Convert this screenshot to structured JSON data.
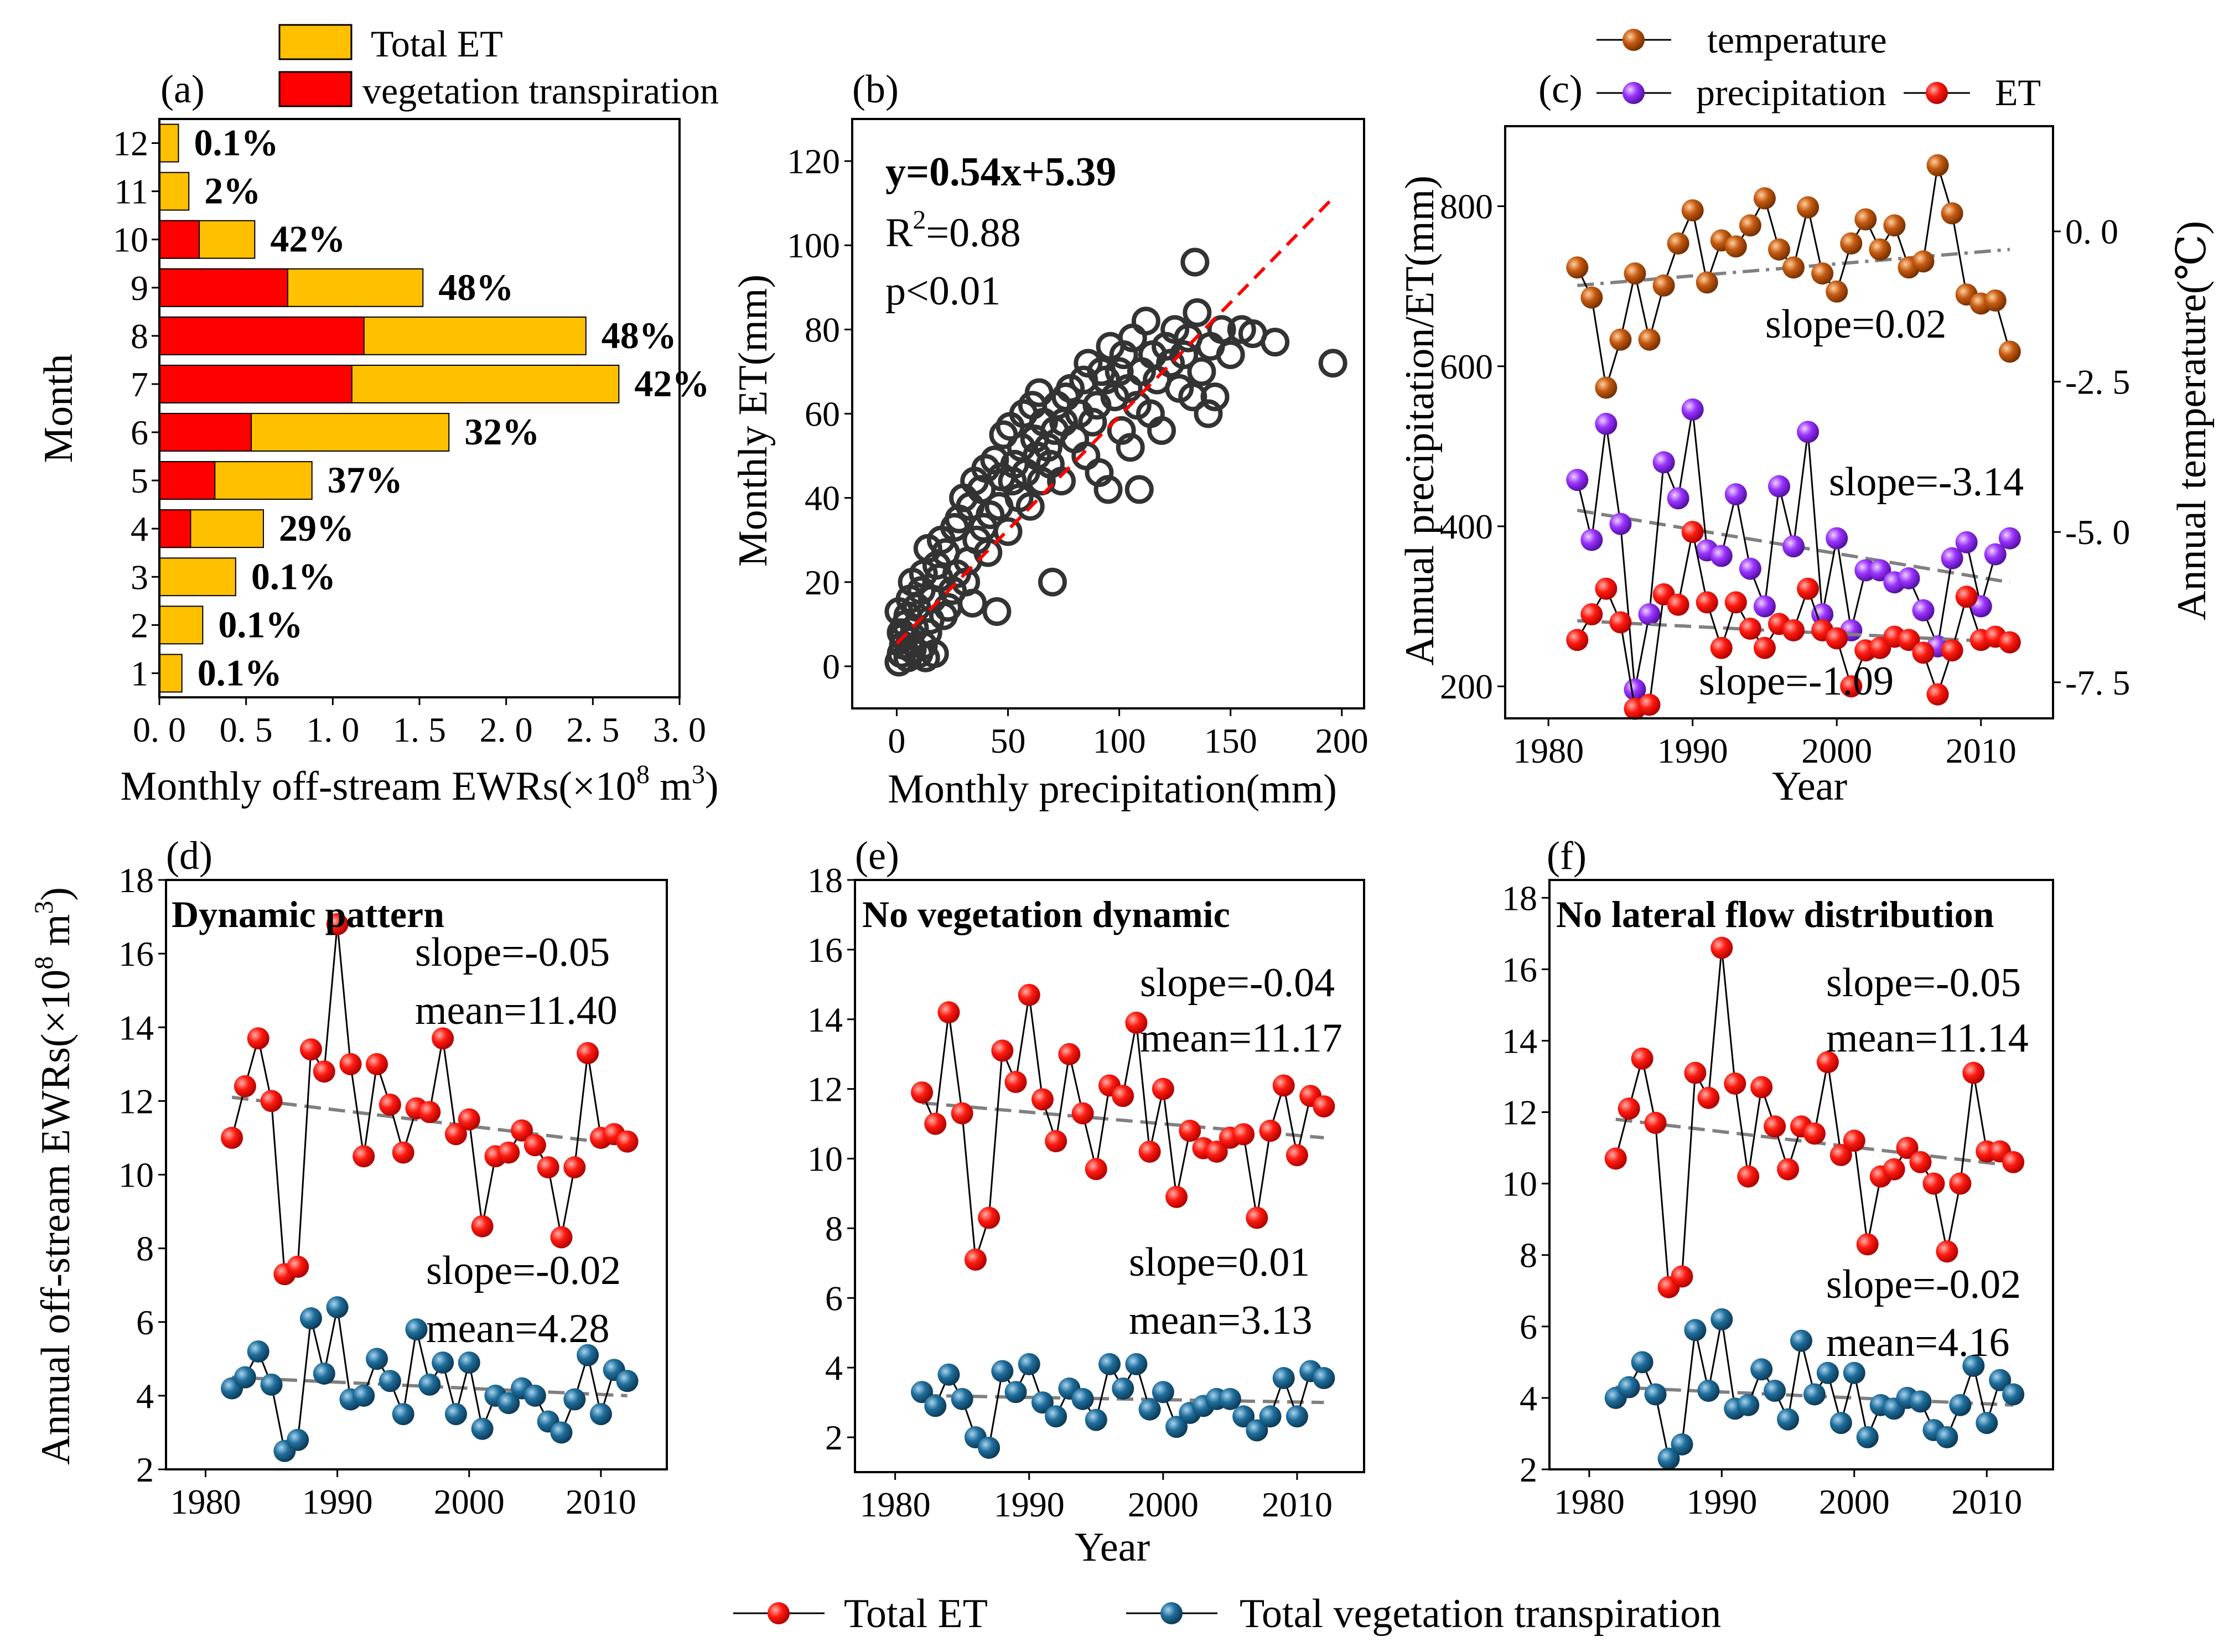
{
  "chart_data": [
    {
      "id": "a",
      "type": "bar",
      "panel_label": "(a)",
      "orientation": "horizontal",
      "categories": [
        "1",
        "2",
        "3",
        "4",
        "5",
        "6",
        "7",
        "8",
        "9",
        "10",
        "11",
        "12"
      ],
      "series": [
        {
          "name": "Total ET",
          "color": "#FFC000",
          "values": [
            0.13,
            0.25,
            0.44,
            0.6,
            0.88,
            1.67,
            2.65,
            2.46,
            1.52,
            0.55,
            0.17,
            0.11
          ]
        },
        {
          "name": "vegetation transpiration",
          "color": "#FF0000",
          "values": [
            0.0,
            0.0,
            0.0,
            0.18,
            0.32,
            0.53,
            1.11,
            1.18,
            0.74,
            0.23,
            0.0,
            0.0
          ]
        }
      ],
      "data_labels": [
        "0.1%",
        "0.1%",
        "0.1%",
        "29%",
        "37%",
        "32%",
        "42%",
        "48%",
        "48%",
        "42%",
        "2%",
        "0.1%"
      ],
      "xlabel_pre": "Monthly off-stream EWRs(×10",
      "xlabel_sup": "8",
      "xlabel_post": " m",
      "xlabel_sup2": "3",
      "xlabel_end": ")",
      "ylabel": "Month",
      "xlim": [
        0,
        3.0
      ],
      "xticks": [
        "0. 0",
        "0. 5",
        "1. 0",
        "1. 5",
        "2. 0",
        "2. 5",
        "3. 0"
      ],
      "legend": [
        "Total ET",
        "vegetation transpiration"
      ]
    },
    {
      "id": "b",
      "type": "scatter",
      "panel_label": "(b)",
      "xlabel": "Monthly precipitation(mm)",
      "ylabel": "Monthly ET(mm)",
      "xlim": [
        -20,
        210
      ],
      "ylim": [
        -10,
        130
      ],
      "xticks": [
        "0",
        "50",
        "100",
        "150",
        "200"
      ],
      "yticks": [
        "0",
        "20",
        "40",
        "60",
        "80",
        "100",
        "120"
      ],
      "equation": "y=0.54x+5.39",
      "r2_pre": "R",
      "r2_sup": "2",
      "r2_post": "=0.88",
      "pvalue": "p<0.01",
      "fit": {
        "slope": 0.54,
        "intercept": 5.39,
        "x_range": [
          0,
          195
        ]
      },
      "points": [
        [
          1,
          1
        ],
        [
          2,
          3
        ],
        [
          3,
          5
        ],
        [
          2,
          8
        ],
        [
          4,
          10
        ],
        [
          1,
          13
        ],
        [
          5,
          2
        ],
        [
          6,
          6
        ],
        [
          7,
          4
        ],
        [
          3,
          7
        ],
        [
          8,
          9
        ],
        [
          5,
          12
        ],
        [
          9,
          14
        ],
        [
          10,
          3
        ],
        [
          12,
          5
        ],
        [
          6,
          16
        ],
        [
          11,
          18
        ],
        [
          13,
          2
        ],
        [
          14,
          8
        ],
        [
          15,
          11
        ],
        [
          7,
          20
        ],
        [
          12,
          22
        ],
        [
          16,
          16
        ],
        [
          18,
          24
        ],
        [
          14,
          28
        ],
        [
          17,
          3
        ],
        [
          19,
          21
        ],
        [
          20,
          30
        ],
        [
          21,
          12
        ],
        [
          22,
          27
        ],
        [
          23,
          14
        ],
        [
          25,
          18
        ],
        [
          26,
          33
        ],
        [
          28,
          35
        ],
        [
          27,
          22
        ],
        [
          30,
          40
        ],
        [
          31,
          20
        ],
        [
          32,
          25
        ],
        [
          33,
          38
        ],
        [
          35,
          44
        ],
        [
          34,
          15
        ],
        [
          36,
          30
        ],
        [
          38,
          42
        ],
        [
          39,
          33
        ],
        [
          40,
          47
        ],
        [
          41,
          27
        ],
        [
          42,
          36
        ],
        [
          44,
          49
        ],
        [
          45,
          13
        ],
        [
          46,
          38
        ],
        [
          47,
          45
        ],
        [
          48,
          55
        ],
        [
          50,
          32
        ],
        [
          51,
          57
        ],
        [
          52,
          44
        ],
        [
          53,
          48
        ],
        [
          55,
          40
        ],
        [
          56,
          52
        ],
        [
          57,
          60
        ],
        [
          58,
          46
        ],
        [
          60,
          38
        ],
        [
          61,
          62
        ],
        [
          62,
          54
        ],
        [
          63,
          50
        ],
        [
          64,
          65
        ],
        [
          65,
          44
        ],
        [
          66,
          58
        ],
        [
          68,
          52
        ],
        [
          69,
          48
        ],
        [
          70,
          20
        ],
        [
          71,
          56
        ],
        [
          72,
          62
        ],
        [
          74,
          44
        ],
        [
          75,
          58
        ],
        [
          76,
          64
        ],
        [
          78,
          66
        ],
        [
          80,
          54
        ],
        [
          82,
          60
        ],
        [
          84,
          68
        ],
        [
          85,
          50
        ],
        [
          86,
          72
        ],
        [
          88,
          58
        ],
        [
          90,
          62
        ],
        [
          91,
          46
        ],
        [
          92,
          70
        ],
        [
          94,
          68
        ],
        [
          95,
          42
        ],
        [
          96,
          76
        ],
        [
          98,
          64
        ],
        [
          100,
          70
        ],
        [
          101,
          56
        ],
        [
          102,
          74
        ],
        [
          104,
          66
        ],
        [
          105,
          52
        ],
        [
          106,
          78
        ],
        [
          108,
          62
        ],
        [
          109,
          42
        ],
        [
          110,
          70
        ],
        [
          112,
          82
        ],
        [
          114,
          60
        ],
        [
          115,
          74
        ],
        [
          117,
          68
        ],
        [
          119,
          56
        ],
        [
          121,
          76
        ],
        [
          123,
          72
        ],
        [
          125,
          80
        ],
        [
          127,
          66
        ],
        [
          129,
          74
        ],
        [
          131,
          78
        ],
        [
          133,
          64
        ],
        [
          134,
          96
        ],
        [
          135,
          84
        ],
        [
          137,
          70
        ],
        [
          140,
          60
        ],
        [
          141,
          76
        ],
        [
          143,
          64
        ],
        [
          146,
          80
        ],
        [
          150,
          74
        ],
        [
          155,
          80
        ],
        [
          160,
          79
        ],
        [
          170,
          77
        ],
        [
          196,
          72
        ]
      ]
    },
    {
      "id": "c",
      "type": "line",
      "panel_label": "(c)",
      "x": [
        1982,
        1983,
        1984,
        1985,
        1986,
        1987,
        1988,
        1989,
        1990,
        1991,
        1992,
        1993,
        1994,
        1995,
        1996,
        1997,
        1998,
        1999,
        2000,
        2001,
        2002,
        2003,
        2004,
        2005,
        2006,
        2007,
        2008,
        2009,
        2010,
        2011,
        2012
      ],
      "series": [
        {
          "name": "temperature",
          "axis": "right",
          "color": "#C55A11",
          "values": [
            -0.6,
            -1.1,
            -2.6,
            -1.8,
            -0.7,
            -1.8,
            -0.9,
            -0.2,
            0.35,
            -0.85,
            -0.15,
            -0.25,
            0.1,
            0.55,
            -0.3,
            -0.6,
            0.4,
            -0.7,
            -1.0,
            -0.2,
            0.2,
            -0.3,
            0.1,
            -0.6,
            -0.5,
            1.1,
            0.3,
            -1.05,
            -1.2,
            -1.15,
            -2.0
          ],
          "trend": {
            "slope_label": "slope=0.02",
            "start": -0.9,
            "end": -0.3
          }
        },
        {
          "name": "precipitation",
          "axis": "left",
          "color": "#9933FF",
          "values": [
            458,
            383,
            528,
            403,
            196,
            290,
            480,
            435,
            546,
            370,
            363,
            440,
            347,
            300,
            450,
            375,
            518,
            290,
            385,
            270,
            345,
            345,
            330,
            335,
            295,
            250,
            360,
            380,
            300,
            365,
            385
          ],
          "trend": {
            "slope_label": "slope=-3.14",
            "start": 420,
            "end": 330
          }
        },
        {
          "name": "ET",
          "axis": "left",
          "color": "#FF0000",
          "values": [
            258,
            290,
            322,
            280,
            172,
            177,
            315,
            302,
            393,
            305,
            248,
            305,
            272,
            248,
            278,
            270,
            322,
            270,
            260,
            200,
            245,
            248,
            262,
            258,
            242,
            190,
            245,
            312,
            258,
            262,
            255
          ],
          "trend": {
            "slope_label": "slope=-1.09",
            "start": 282,
            "end": 255
          }
        }
      ],
      "xlabel": "Year",
      "ylabel_left": "Annual precipitation/ET(mm)",
      "ylabel_right": "Annual temperature(℃)",
      "xlim": [
        1977,
        2015
      ],
      "ylim_left": [
        160,
        900
      ],
      "ylim_right": [
        -8.1,
        1.75
      ],
      "xticks": [
        "1980",
        "1990",
        "2000",
        "2010"
      ],
      "yticks_left": [
        "200",
        "400",
        "600",
        "800"
      ],
      "yticks_right": [
        "-7. 5",
        "-5. 0",
        "-2. 5",
        "0. 0"
      ],
      "legend": [
        "temperature",
        "precipitation",
        "ET"
      ]
    },
    {
      "id": "d",
      "type": "line",
      "panel_label": "(d)",
      "title": "Dynamic pattern",
      "x": [
        1982,
        1983,
        1984,
        1985,
        1986,
        1987,
        1988,
        1989,
        1990,
        1991,
        1992,
        1993,
        1994,
        1995,
        1996,
        1997,
        1998,
        1999,
        2000,
        2001,
        2002,
        2003,
        2004,
        2005,
        2006,
        2007,
        2008,
        2009,
        2010,
        2011,
        2012
      ],
      "series": [
        {
          "name": "Total ET",
          "color": "#FF0000",
          "values": [
            11.0,
            12.4,
            13.7,
            12.0,
            7.3,
            7.5,
            13.4,
            12.8,
            16.8,
            13.0,
            10.5,
            13.0,
            11.9,
            10.6,
            11.8,
            11.7,
            13.7,
            11.1,
            11.5,
            8.6,
            10.5,
            10.6,
            11.2,
            10.8,
            10.2,
            8.3,
            10.2,
            13.3,
            11.0,
            11.1,
            10.9
          ],
          "trend": {
            "start": 12.1,
            "end": 10.8
          }
        },
        {
          "name": "Total vegetation transpiration",
          "color": "#1F6E9C",
          "values": [
            4.2,
            4.5,
            5.2,
            4.3,
            2.5,
            2.8,
            6.1,
            4.6,
            6.4,
            3.9,
            4.0,
            5.0,
            4.4,
            3.5,
            5.8,
            4.3,
            4.9,
            3.5,
            4.9,
            3.1,
            4.0,
            3.8,
            4.2,
            4.0,
            3.3,
            3.0,
            3.9,
            5.1,
            3.5,
            4.7,
            4.4
          ],
          "trend": {
            "start": 4.5,
            "end": 4.0
          }
        }
      ],
      "annotations": [
        "slope=-0.05",
        "mean=11.40",
        "slope=-0.02",
        "mean=4.28"
      ],
      "ylabel_pre": "Annual off-stream EWRs(×10",
      "ylabel_sup": "8",
      "ylabel_post": " m",
      "ylabel_sup2": "3",
      "ylabel_end": ")",
      "xlim": [
        1977,
        2015
      ],
      "ylim": [
        2,
        18
      ],
      "xticks": [
        "1980",
        "1990",
        "2000",
        "2010"
      ],
      "yticks": [
        "2",
        "4",
        "6",
        "8",
        "10",
        "12",
        "14",
        "16",
        "18"
      ]
    },
    {
      "id": "e",
      "type": "line",
      "panel_label": "(e)",
      "title": "No vegetation dynamic",
      "x": [
        1982,
        1983,
        1984,
        1985,
        1986,
        1987,
        1988,
        1989,
        1990,
        1991,
        1992,
        1993,
        1994,
        1995,
        1996,
        1997,
        1998,
        1999,
        2000,
        2001,
        2002,
        2003,
        2004,
        2005,
        2006,
        2007,
        2008,
        2009,
        2010,
        2011,
        2012
      ],
      "series": [
        {
          "name": "Total ET",
          "color": "#FF0000",
          "values": [
            11.9,
            11.0,
            14.2,
            11.3,
            7.1,
            8.3,
            13.1,
            12.2,
            14.7,
            11.7,
            10.5,
            13.0,
            11.3,
            9.7,
            12.1,
            11.8,
            13.9,
            10.2,
            12.0,
            8.9,
            10.8,
            10.3,
            10.2,
            10.6,
            10.7,
            8.3,
            10.8,
            12.1,
            10.1,
            11.8,
            11.5
          ],
          "trend": {
            "start": 11.6,
            "end": 10.6
          }
        },
        {
          "name": "Total vegetation transpiration",
          "color": "#1F6E9C",
          "values": [
            3.3,
            2.9,
            3.8,
            3.1,
            2.0,
            1.7,
            3.9,
            3.3,
            4.1,
            3.0,
            2.6,
            3.4,
            3.1,
            2.5,
            4.1,
            3.4,
            4.1,
            2.8,
            3.3,
            2.3,
            2.7,
            2.9,
            3.1,
            3.1,
            2.6,
            2.2,
            2.6,
            3.7,
            2.6,
            3.9,
            3.7
          ],
          "trend": {
            "start": 3.2,
            "end": 3.0
          }
        }
      ],
      "annotations": [
        "slope=-0.04",
        "mean=11.17",
        "slope=0.01",
        "mean=3.13"
      ],
      "xlabel": "Year",
      "xlim": [
        1977,
        2015
      ],
      "ylim": [
        1,
        18
      ],
      "xticks": [
        "1980",
        "1990",
        "2000",
        "2010"
      ],
      "yticks": [
        "2",
        "4",
        "6",
        "8",
        "10",
        "12",
        "14",
        "16",
        "18"
      ]
    },
    {
      "id": "f",
      "type": "line",
      "panel_label": "(f)",
      "title": "No lateral flow distribution",
      "x": [
        1982,
        1983,
        1984,
        1985,
        1986,
        1987,
        1988,
        1989,
        1990,
        1991,
        1992,
        1993,
        1994,
        1995,
        1996,
        1997,
        1998,
        1999,
        2000,
        2001,
        2002,
        2003,
        2004,
        2005,
        2006,
        2007,
        2008,
        2009,
        2010,
        2011,
        2012
      ],
      "series": [
        {
          "name": "Total ET",
          "color": "#FF0000",
          "values": [
            10.7,
            12.1,
            13.5,
            11.7,
            7.1,
            7.4,
            13.1,
            12.4,
            16.6,
            12.8,
            10.2,
            12.7,
            11.6,
            10.4,
            11.6,
            11.4,
            13.4,
            10.8,
            11.2,
            8.3,
            10.2,
            10.4,
            11.0,
            10.6,
            10.0,
            8.1,
            10.0,
            13.1,
            10.9,
            10.9,
            10.6
          ],
          "trend": {
            "start": 11.8,
            "end": 10.5
          }
        },
        {
          "name": "Total vegetation transpiration",
          "color": "#1F6E9C",
          "values": [
            4.0,
            4.3,
            5.0,
            4.1,
            2.3,
            2.7,
            5.9,
            4.2,
            6.2,
            3.7,
            3.8,
            4.8,
            4.2,
            3.4,
            5.6,
            4.1,
            4.7,
            3.3,
            4.7,
            2.9,
            3.8,
            3.7,
            4.0,
            3.9,
            3.1,
            2.9,
            3.8,
            4.9,
            3.3,
            4.5,
            4.1
          ],
          "trend": {
            "start": 4.3,
            "end": 3.8
          }
        }
      ],
      "annotations": [
        "slope=-0.05",
        "mean=11.14",
        "slope=-0.02",
        "mean=4.16"
      ],
      "xlim": [
        1977,
        2015
      ],
      "ylim": [
        2,
        18.5
      ],
      "xticks": [
        "1980",
        "1990",
        "2000",
        "2010"
      ],
      "yticks": [
        "2",
        "4",
        "6",
        "8",
        "10",
        "12",
        "14",
        "16",
        "18"
      ]
    }
  ],
  "bottom_legend": [
    "Total ET",
    "Total vegetation transpiration"
  ]
}
